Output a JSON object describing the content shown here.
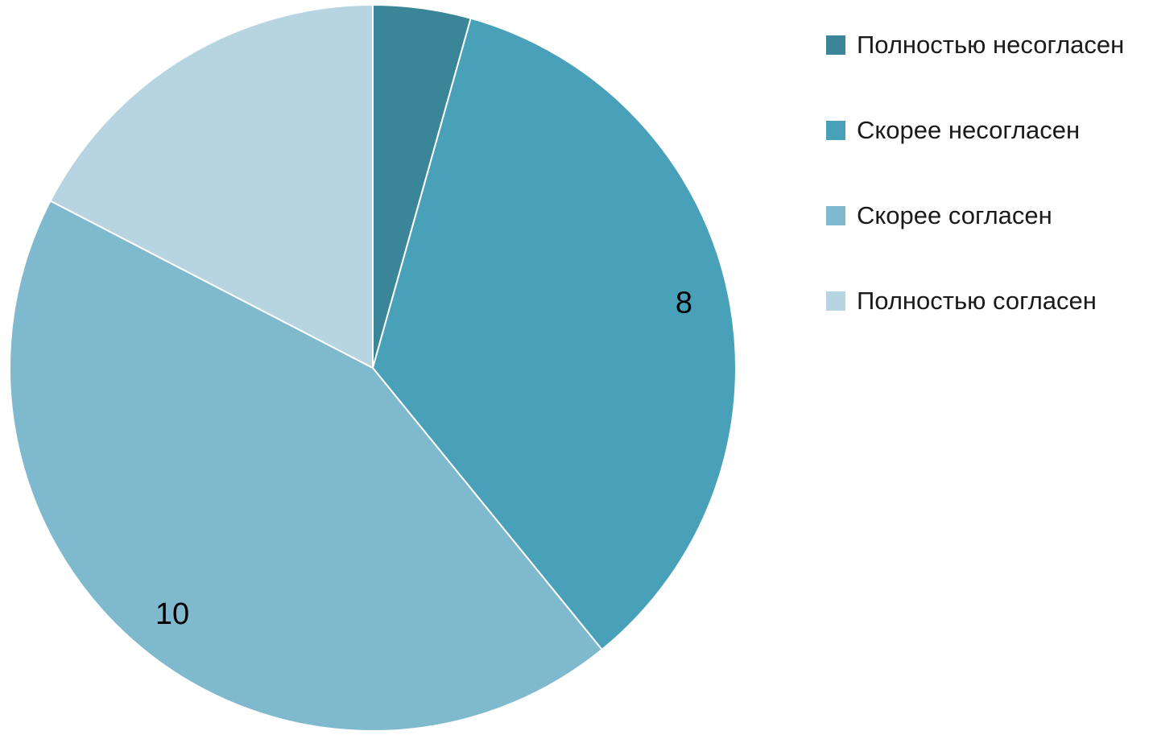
{
  "chart_data": {
    "type": "pie",
    "categories": [
      "Полностью несогласен",
      "Скорее несогласен",
      "Скорее согласен",
      "Полностью согласен"
    ],
    "values": [
      1,
      8,
      10,
      4
    ],
    "data_labels": [
      "",
      "8",
      "10",
      ""
    ],
    "colors": [
      "#3b8598",
      "#49a1b9",
      "#7fb9ce",
      "#b7d5e0"
    ],
    "start_angle_deg": 0,
    "direction": "clockwise",
    "legend": "right",
    "title": ""
  }
}
